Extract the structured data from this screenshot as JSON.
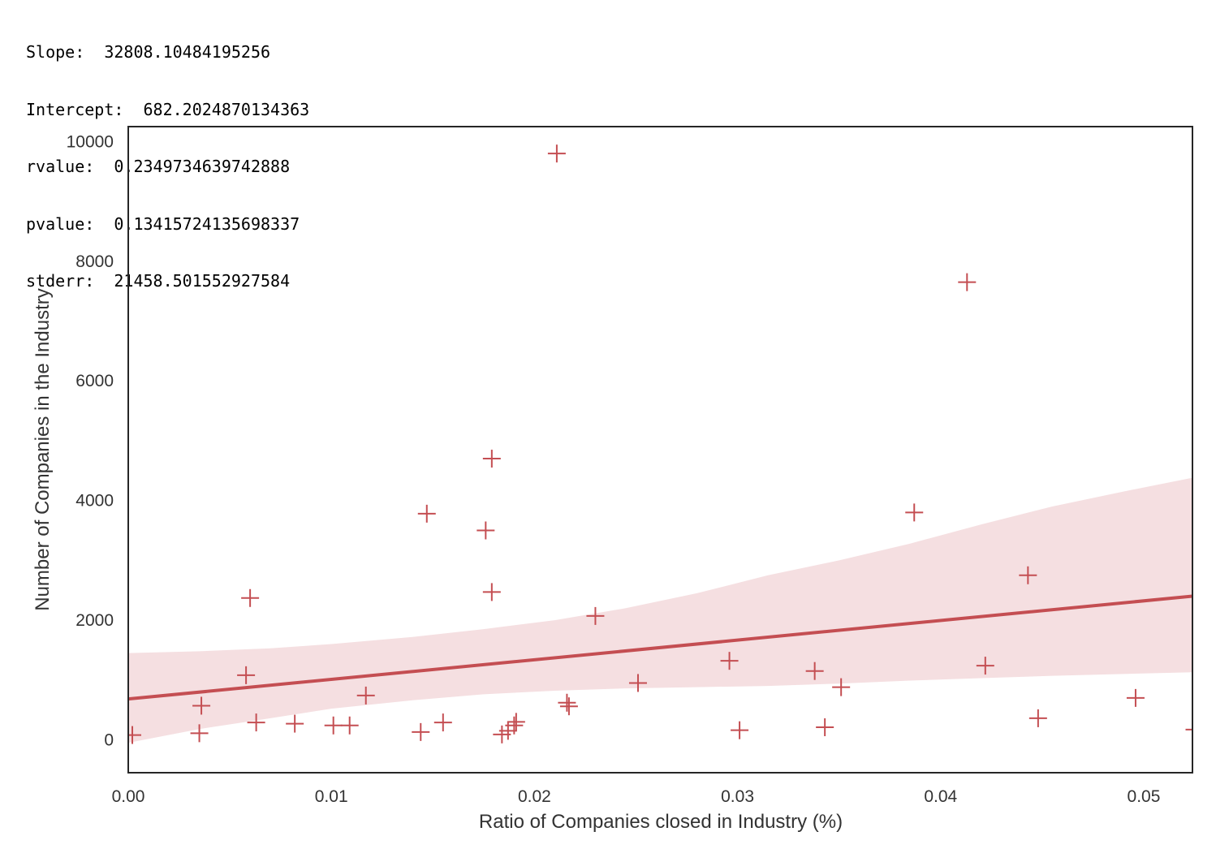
{
  "stats": {
    "slope": "Slope:  32808.10484195256",
    "intercept": "Intercept:  682.2024870134363",
    "rvalue": "rvalue:  0.2349734639742888",
    "pvalue": "pvalue:  0.13415724135698337",
    "stderr": "stderr:  21458.501552927584"
  },
  "chart_data": {
    "type": "scatter",
    "xlabel": "Ratio of Companies closed in Industry (%)",
    "ylabel": "Number of Companies in the Industry",
    "xlim": [
      0.0,
      0.0524
    ],
    "ylim": [
      -550,
      10250
    ],
    "x_ticks": [
      0.0,
      0.01,
      0.02,
      0.03,
      0.04,
      0.05
    ],
    "x_tick_labels": [
      "0.00",
      "0.01",
      "0.02",
      "0.03",
      "0.04",
      "0.05"
    ],
    "y_ticks": [
      0,
      2000,
      4000,
      6000,
      8000,
      10000
    ],
    "y_tick_labels": [
      "0",
      "2000",
      "4000",
      "6000",
      "8000",
      "10000"
    ],
    "grid": false,
    "marker": "+",
    "color": "#c44e52",
    "band_color": "#f5dfe1",
    "series": [
      {
        "x": [
          0.0211,
          0.0413,
          0.0179,
          0.0147,
          0.0387,
          0.0176,
          0.0443,
          0.0179,
          0.006,
          0.023,
          0.0058,
          0.0296,
          0.0422,
          0.0338,
          0.0251,
          0.0351,
          0.0117,
          0.0496,
          0.0216,
          0.0217,
          0.0036,
          0.0063,
          0.0082,
          0.0448,
          0.0155,
          0.0101,
          0.0109,
          0.0191,
          0.019,
          0.0343,
          0.0187,
          0.0301,
          0.0144,
          0.0035,
          0.0184,
          0.0525,
          0.0002
        ],
        "y": [
          9800,
          7650,
          4700,
          3780,
          3800,
          3500,
          2750,
          2470,
          2370,
          2070,
          1080,
          1320,
          1240,
          1150,
          950,
          880,
          740,
          700,
          620,
          560,
          570,
          290,
          270,
          360,
          290,
          240,
          240,
          300,
          240,
          210,
          150,
          160,
          130,
          110,
          90,
          170,
          80
        ]
      }
    ],
    "regression": {
      "slope": 32808.10484195256,
      "intercept": 682.2024870134363
    },
    "confidence_band": {
      "x": [
        0.0,
        0.0035,
        0.007,
        0.01,
        0.014,
        0.0175,
        0.021,
        0.0245,
        0.028,
        0.0315,
        0.035,
        0.0385,
        0.042,
        0.0455,
        0.049,
        0.0524
      ],
      "lower": [
        -50,
        180,
        360,
        520,
        660,
        760,
        820,
        860,
        880,
        900,
        940,
        990,
        1030,
        1070,
        1100,
        1130
      ],
      "upper": [
        1450,
        1480,
        1530,
        1600,
        1720,
        1850,
        2000,
        2200,
        2450,
        2750,
        3000,
        3280,
        3600,
        3900,
        4150,
        4380
      ]
    }
  }
}
